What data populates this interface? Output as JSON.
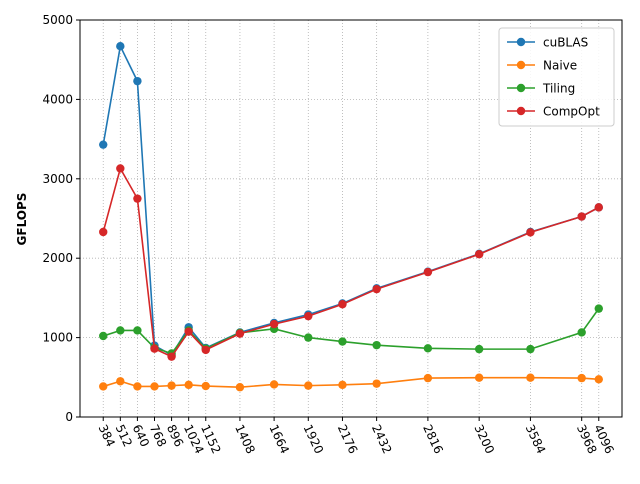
{
  "chart_data": {
    "type": "line",
    "title": "",
    "xlabel": "",
    "ylabel": "GFLOPS",
    "x": [
      384,
      512,
      640,
      768,
      896,
      1024,
      1152,
      1408,
      1664,
      1920,
      2176,
      2432,
      2816,
      3200,
      3584,
      3968,
      4096
    ],
    "xticks": [
      384,
      512,
      640,
      768,
      896,
      1024,
      1152,
      1408,
      1664,
      1920,
      2176,
      2432,
      2816,
      3200,
      3584,
      3968,
      4096
    ],
    "xlim": [
      210,
      4270
    ],
    "ylim": [
      0,
      5000
    ],
    "yticks": [
      0,
      1000,
      2000,
      3000,
      4000,
      5000
    ],
    "grid": true,
    "legend_position": "top-right",
    "series": [
      {
        "name": "cuBLAS",
        "color": "#1f77b4",
        "values": [
          3430,
          4670,
          4230,
          900,
          780,
          1130,
          870,
          1065,
          1185,
          1290,
          1430,
          1620,
          1830,
          2055,
          2330,
          2525,
          2640
        ]
      },
      {
        "name": "Naive",
        "color": "#ff7f0e",
        "values": [
          385,
          450,
          385,
          385,
          395,
          405,
          390,
          375,
          410,
          395,
          405,
          420,
          490,
          495,
          495,
          490,
          475
        ]
      },
      {
        "name": "Tiling",
        "color": "#2ca02c",
        "values": [
          1020,
          1090,
          1090,
          870,
          800,
          1090,
          860,
          1060,
          1110,
          1000,
          950,
          905,
          865,
          855,
          855,
          1065,
          1365
        ]
      },
      {
        "name": "CompOpt",
        "color": "#d62728",
        "values": [
          2330,
          3130,
          2750,
          860,
          760,
          1075,
          845,
          1050,
          1170,
          1270,
          1420,
          1610,
          1825,
          2050,
          2325,
          2525,
          2640
        ]
      }
    ]
  }
}
